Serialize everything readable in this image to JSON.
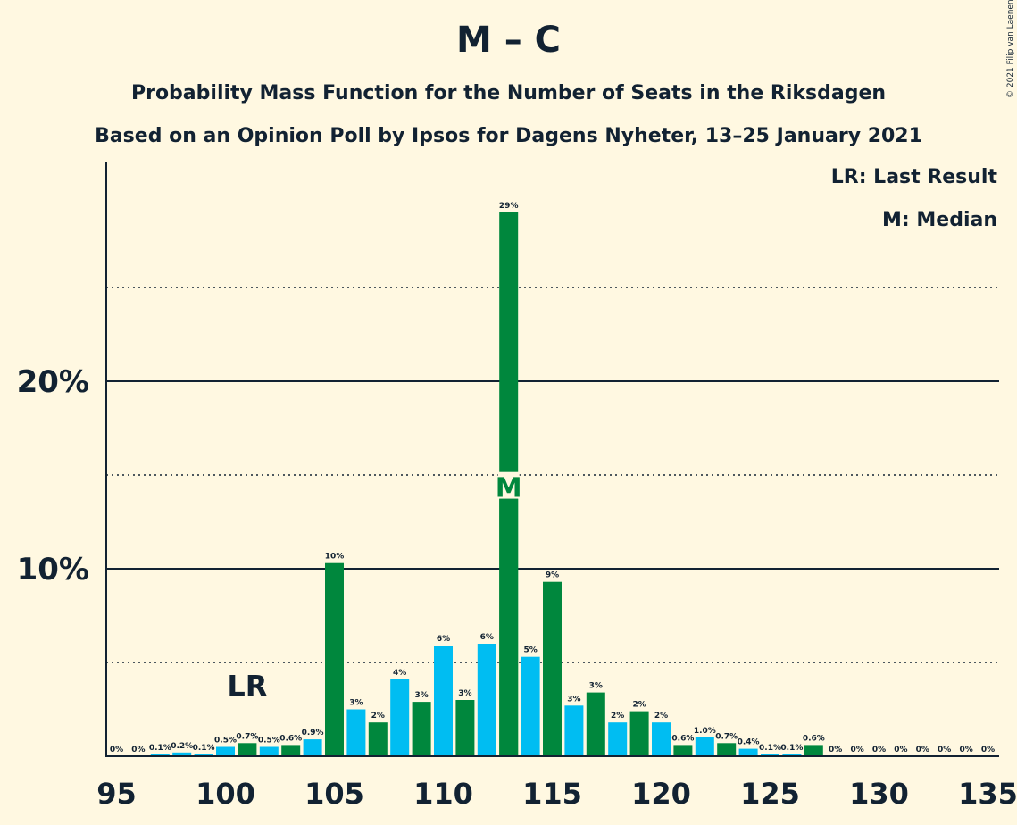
{
  "title": "M – C",
  "subtitle": "Probability Mass Function for the Number of Seats in the Riksdagen",
  "subtitle2": "Based on an Opinion Poll by Ipsos for Dagens Nyheter, 13–25 January 2021",
  "copyright": "© 2021 Filip van Laenen",
  "legend": {
    "last_result": "LR: Last Result",
    "median": "M: Median"
  },
  "colors": {
    "background": "#fff8e1",
    "green": "#00873d",
    "blue": "#00bdf2",
    "text": "#122232"
  },
  "chart_data": {
    "type": "bar",
    "x": [
      95,
      96,
      97,
      98,
      99,
      100,
      101,
      102,
      103,
      104,
      105,
      106,
      107,
      108,
      109,
      110,
      111,
      112,
      113,
      114,
      115,
      116,
      117,
      118,
      119,
      120,
      121,
      122,
      123,
      124,
      125,
      126,
      127,
      128,
      129,
      130,
      131,
      132,
      133,
      134,
      135
    ],
    "values": [
      0,
      0,
      0.1,
      0.2,
      0.1,
      0.5,
      0.7,
      0.5,
      0.6,
      0.9,
      10.3,
      2.5,
      1.8,
      4.1,
      2.9,
      5.9,
      3.0,
      6.0,
      29.0,
      5.3,
      9.3,
      2.7,
      3.4,
      1.8,
      2.4,
      1.8,
      0.6,
      1.0,
      0.7,
      0.4,
      0.1,
      0.1,
      0.6,
      0,
      0,
      0,
      0,
      0,
      0,
      0,
      0
    ],
    "labels": [
      "0%",
      "0%",
      "0.1%",
      "0.2%",
      "0.1%",
      "0.5%",
      "0.7%",
      "0.5%",
      "0.6%",
      "0.9%",
      "10%",
      "3%",
      "2%",
      "4%",
      "3%",
      "6%",
      "3%",
      "6%",
      "29%",
      "5%",
      "9%",
      "3%",
      "3%",
      "2%",
      "2%",
      "2%",
      "0.6%",
      "1.0%",
      "0.7%",
      "0.4%",
      "0.1%",
      "0.1%",
      "0.6%",
      "0%",
      "0%",
      "0%",
      "0%",
      "0%",
      "0%",
      "0%",
      "0%"
    ],
    "xticks": [
      95,
      100,
      105,
      110,
      115,
      120,
      125,
      130,
      135
    ],
    "yticks_major": [
      10,
      20
    ],
    "yticks_major_labels": [
      "10%",
      "20%"
    ],
    "yticks_minor": [
      5,
      15,
      25
    ],
    "ylim": [
      0,
      30
    ],
    "last_result": 101,
    "last_result_label": "LR",
    "median": 113,
    "median_label": "M",
    "green_seats": [
      101,
      103,
      105,
      107,
      109,
      111,
      113,
      115,
      117,
      119,
      121,
      123,
      127
    ]
  }
}
